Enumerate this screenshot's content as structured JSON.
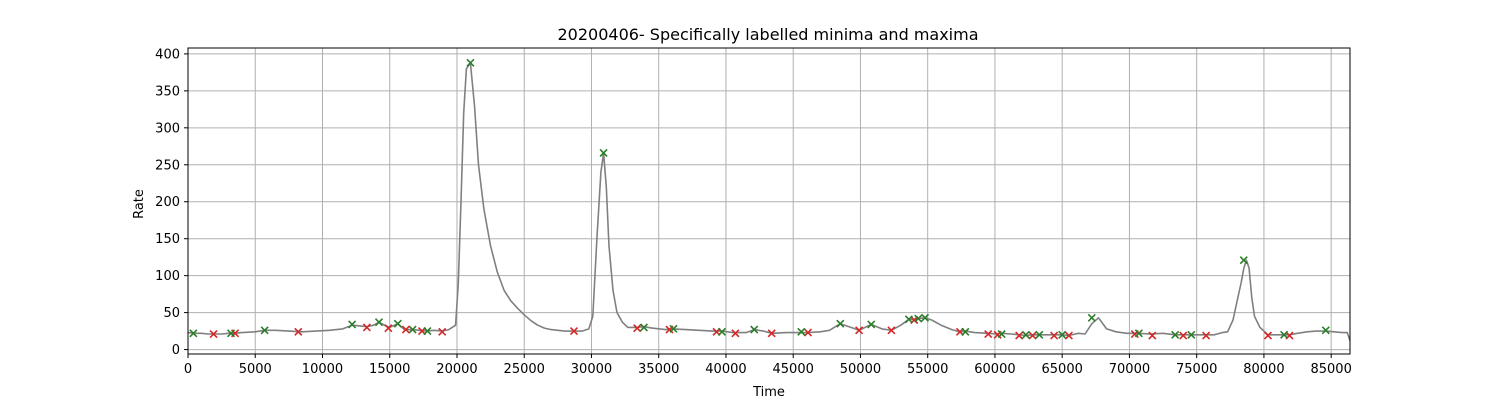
{
  "chart_data": {
    "type": "line",
    "title": "20200406- Specifically labelled minima and maxima",
    "xlabel": "Time",
    "ylabel": "Rate",
    "xlim": [
      0,
      86400
    ],
    "ylim": [
      -6,
      408
    ],
    "xticks": [
      0,
      5000,
      10000,
      15000,
      20000,
      25000,
      30000,
      35000,
      40000,
      45000,
      50000,
      55000,
      60000,
      65000,
      70000,
      75000,
      80000,
      85000
    ],
    "yticks": [
      0,
      50,
      100,
      150,
      200,
      250,
      300,
      350,
      400
    ],
    "grid": true,
    "colors": {
      "line": "#808080",
      "maxima": "#2a7d2a",
      "minima": "#d62728",
      "grid": "#b0b0b0"
    },
    "series": [
      {
        "kind": "line",
        "x": [
          0,
          500,
          1000,
          1500,
          2000,
          2500,
          3000,
          3500,
          4000,
          5000,
          5700,
          6500,
          7500,
          8500,
          9500,
          10500,
          11500,
          12200,
          12800,
          13300,
          13800,
          14200,
          14700,
          15000,
          15600,
          16100,
          16700,
          17200,
          17800,
          18300,
          18900,
          19400,
          19900,
          20100,
          20300,
          20500,
          20700,
          21000,
          21300,
          21600,
          22000,
          22500,
          23000,
          23500,
          24000,
          24500,
          25000,
          25500,
          26000,
          26500,
          27000,
          27500,
          28000,
          28700,
          29300,
          29800,
          30100,
          30400,
          30700,
          30900,
          31100,
          31300,
          31600,
          31900,
          32300,
          32700,
          33400,
          33900,
          34500,
          35500,
          36100,
          37000,
          38000,
          39000,
          39700,
          40500,
          41500,
          42100,
          42800,
          43400,
          44500,
          45600,
          46100,
          47000,
          47700,
          48500,
          49300,
          49900,
          50800,
          51600,
          52300,
          53000,
          53600,
          54000,
          54300,
          54800,
          55300,
          56000,
          56800,
          57400,
          57800,
          58500,
          59500,
          60100,
          60500,
          61200,
          61800,
          62300,
          62800,
          63300,
          63800,
          64400,
          65000,
          65500,
          66200,
          66700,
          67200,
          67700,
          68300,
          69000,
          69800,
          70400,
          70700,
          71500,
          72500,
          73400,
          73800,
          74200,
          74600,
          75200,
          75700,
          76300,
          76900,
          77300,
          77700,
          78000,
          78300,
          78500,
          78700,
          78900,
          79100,
          79300,
          79700,
          80300,
          80900,
          81500,
          81900,
          82500,
          83200,
          83900,
          84600,
          85200,
          85800,
          86200,
          86400
        ],
        "y": [
          23,
          22,
          22,
          21,
          21,
          21,
          22,
          22,
          23,
          24,
          26,
          26,
          25,
          24,
          25,
          26,
          28,
          33,
          32,
          31,
          33,
          37,
          32,
          30,
          35,
          27,
          27,
          26,
          25,
          26,
          25,
          27,
          33,
          90,
          200,
          320,
          380,
          388,
          330,
          250,
          190,
          140,
          105,
          80,
          66,
          56,
          47,
          39,
          33,
          29,
          27,
          26,
          25,
          25,
          25,
          28,
          45,
          150,
          240,
          266,
          220,
          140,
          80,
          50,
          37,
          30,
          30,
          31,
          29,
          27,
          28,
          27,
          26,
          25,
          25,
          23,
          23,
          27,
          25,
          22,
          23,
          23,
          23,
          24,
          26,
          35,
          30,
          26,
          34,
          28,
          26,
          33,
          41,
          41,
          42,
          43,
          40,
          33,
          27,
          24,
          25,
          23,
          22,
          21,
          22,
          21,
          20,
          19,
          20,
          20,
          20,
          20,
          20,
          19,
          22,
          21,
          35,
          43,
          28,
          24,
          22,
          22,
          22,
          21,
          22,
          20,
          20,
          20,
          20,
          20,
          20,
          20,
          23,
          24,
          40,
          65,
          90,
          110,
          121,
          110,
          70,
          45,
          30,
          20,
          20,
          20,
          20,
          22,
          24,
          25,
          25,
          24,
          23,
          23,
          12
        ]
      },
      {
        "kind": "markers",
        "name": "maxima",
        "marker": "x",
        "x": [
          400,
          3200,
          5700,
          12200,
          14200,
          15600,
          16700,
          17800,
          21000,
          30900,
          33900,
          36100,
          39700,
          42100,
          45600,
          48500,
          50800,
          53600,
          54300,
          54800,
          57800,
          60500,
          62300,
          63300,
          65000,
          67200,
          70700,
          73400,
          74600,
          78500,
          81500,
          84600
        ],
        "y": [
          22,
          22,
          26,
          34,
          37,
          35,
          27,
          25,
          388,
          266,
          30,
          28,
          24,
          27,
          24,
          35,
          34,
          41,
          42,
          43,
          24,
          21,
          20,
          20,
          20,
          43,
          22,
          20,
          20,
          121,
          20,
          26
        ]
      },
      {
        "kind": "markers",
        "name": "minima",
        "marker": "x",
        "x": [
          1900,
          3500,
          8200,
          13300,
          14900,
          16200,
          17400,
          18900,
          28700,
          33400,
          35800,
          39300,
          40700,
          43400,
          46100,
          49900,
          52300,
          54000,
          57400,
          59500,
          60200,
          61800,
          62800,
          64400,
          65500,
          70400,
          71700,
          74000,
          75700,
          80300,
          81900
        ],
        "y": [
          21,
          22,
          24,
          30,
          29,
          27,
          25,
          24,
          25,
          29,
          27,
          24,
          22,
          22,
          23,
          26,
          26,
          40,
          24,
          21,
          20,
          19,
          19,
          19,
          19,
          21,
          19,
          19,
          19,
          19,
          19
        ]
      }
    ]
  }
}
